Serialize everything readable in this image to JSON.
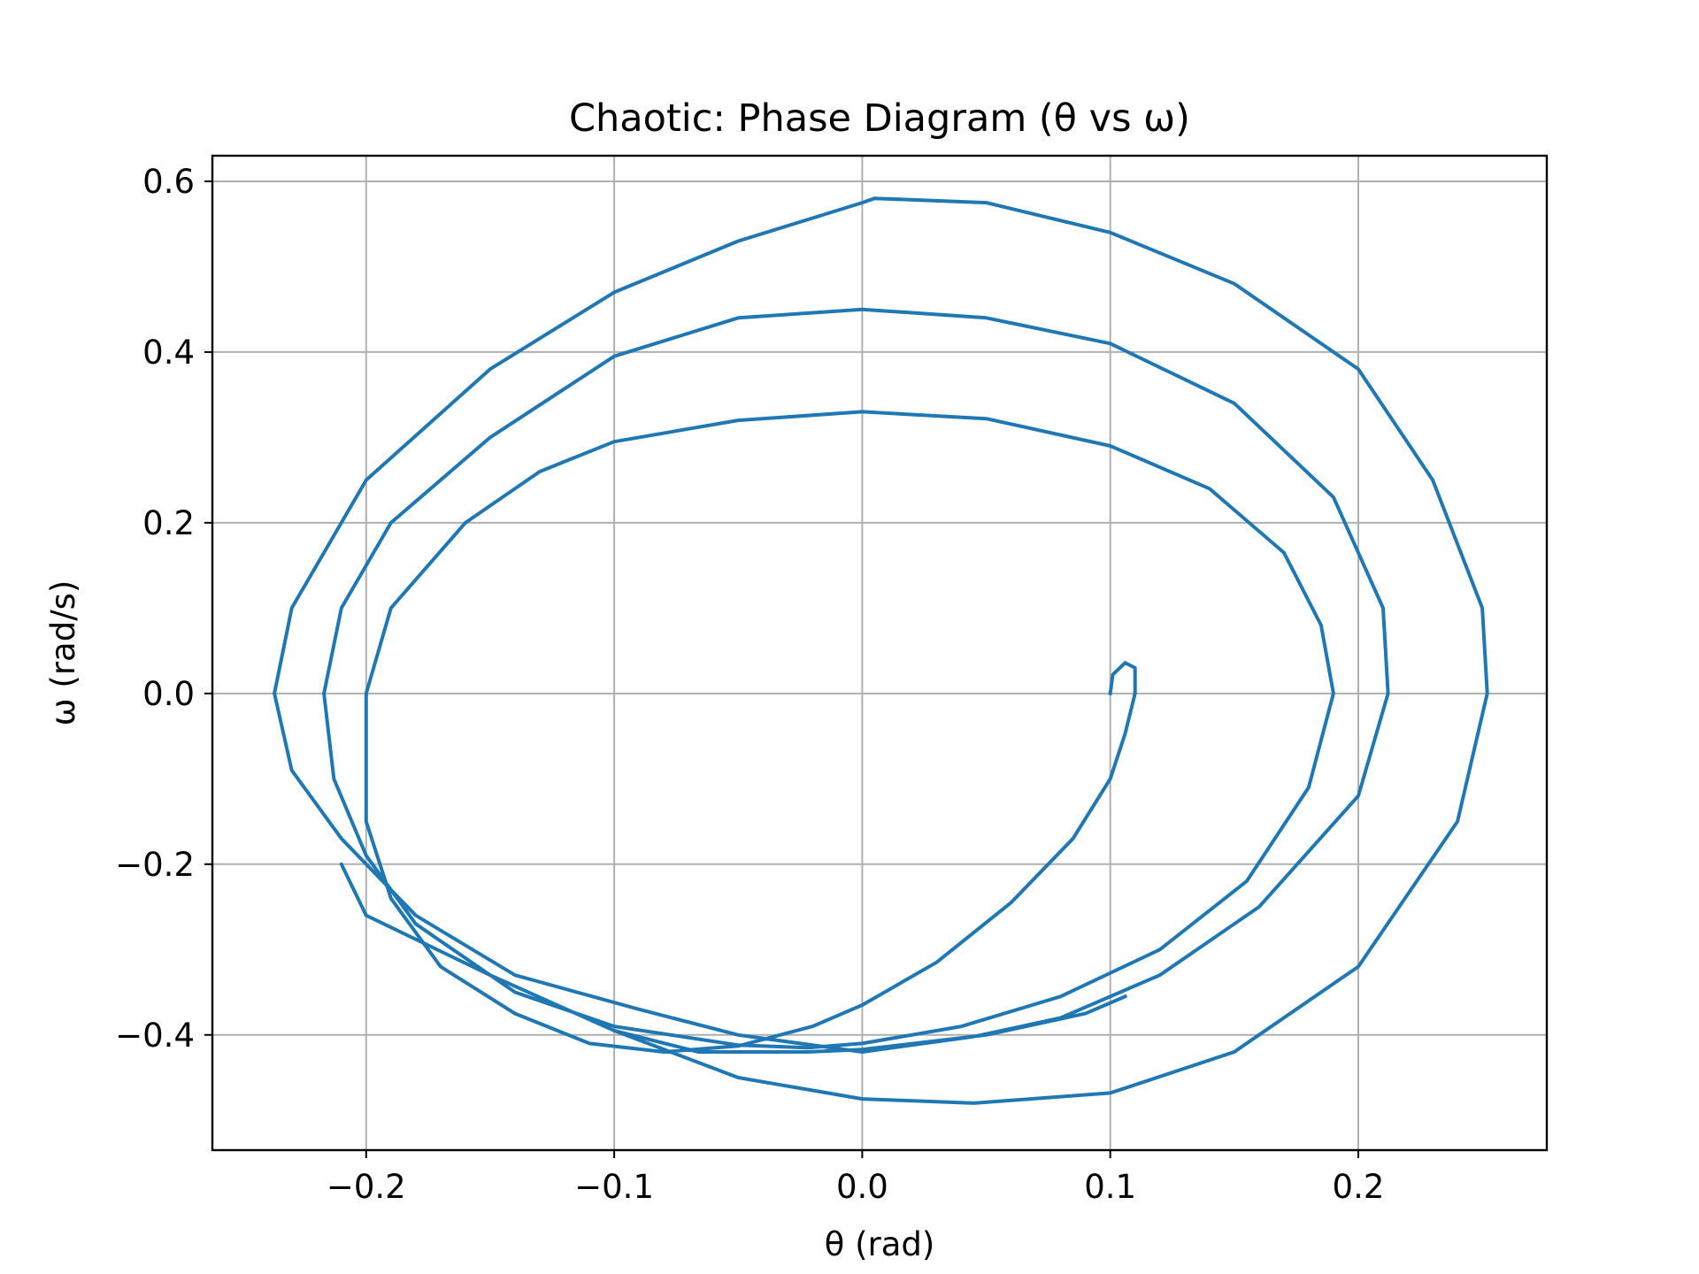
{
  "chart_data": {
    "type": "line",
    "title": "Chaotic: Phase Diagram (θ vs ω)",
    "xlabel": "θ (rad)",
    "ylabel": "ω (rad/s)",
    "xlim": [
      -0.262,
      0.276
    ],
    "ylim": [
      -0.535,
      0.63
    ],
    "xticks": [
      -0.2,
      -0.1,
      0.0,
      0.1,
      0.2
    ],
    "yticks": [
      -0.4,
      -0.2,
      0.0,
      0.2,
      0.4,
      0.6
    ],
    "xtick_labels": [
      "−0.2",
      "−0.1",
      "0.0",
      "0.1",
      "0.2"
    ],
    "ytick_labels": [
      "−0.4",
      "−0.2",
      "0.0",
      "0.2",
      "0.4",
      "0.6"
    ],
    "grid": true,
    "legend": "none",
    "series": [
      {
        "color": "#1f77b4",
        "points": [
          [
            0.1,
            0.0
          ],
          [
            0.101,
            0.022
          ],
          [
            0.106,
            0.036
          ],
          [
            0.11,
            0.03
          ],
          [
            0.11,
            0.0
          ],
          [
            0.106,
            -0.047
          ],
          [
            0.1,
            -0.1
          ],
          [
            0.085,
            -0.17
          ],
          [
            0.06,
            -0.245
          ],
          [
            0.03,
            -0.315
          ],
          [
            0.0,
            -0.365
          ],
          [
            -0.02,
            -0.39
          ],
          [
            -0.05,
            -0.413
          ],
          [
            -0.08,
            -0.42
          ],
          [
            -0.11,
            -0.41
          ],
          [
            -0.14,
            -0.375
          ],
          [
            -0.17,
            -0.32
          ],
          [
            -0.19,
            -0.24
          ],
          [
            -0.2,
            -0.15
          ],
          [
            -0.2,
            0.0
          ],
          [
            -0.19,
            0.1
          ],
          [
            -0.16,
            0.2
          ],
          [
            -0.13,
            0.26
          ],
          [
            -0.1,
            0.295
          ],
          [
            -0.05,
            0.32
          ],
          [
            0.0,
            0.33
          ],
          [
            0.05,
            0.322
          ],
          [
            0.1,
            0.29
          ],
          [
            0.14,
            0.24
          ],
          [
            0.17,
            0.165
          ],
          [
            0.185,
            0.08
          ],
          [
            0.19,
            0.0
          ],
          [
            0.18,
            -0.11
          ],
          [
            0.155,
            -0.22
          ],
          [
            0.12,
            -0.3
          ],
          [
            0.08,
            -0.355
          ],
          [
            0.04,
            -0.39
          ],
          [
            0.0,
            -0.41
          ],
          [
            -0.022,
            -0.415
          ],
          [
            -0.05,
            -0.412
          ],
          [
            -0.1,
            -0.39
          ],
          [
            -0.14,
            -0.35
          ],
          [
            -0.18,
            -0.27
          ],
          [
            -0.2,
            -0.19
          ],
          [
            -0.213,
            -0.1
          ],
          [
            -0.217,
            0.0
          ],
          [
            -0.21,
            0.1
          ],
          [
            -0.19,
            0.2
          ],
          [
            -0.15,
            0.3
          ],
          [
            -0.1,
            0.395
          ],
          [
            -0.05,
            0.44
          ],
          [
            0.0,
            0.45
          ],
          [
            0.05,
            0.44
          ],
          [
            0.1,
            0.41
          ],
          [
            0.15,
            0.34
          ],
          [
            0.19,
            0.23
          ],
          [
            0.21,
            0.1
          ],
          [
            0.212,
            0.0
          ],
          [
            0.2,
            -0.12
          ],
          [
            0.16,
            -0.25
          ],
          [
            0.12,
            -0.33
          ],
          [
            0.08,
            -0.38
          ],
          [
            0.045,
            -0.402
          ],
          [
            0.0,
            -0.42
          ],
          [
            -0.05,
            -0.4
          ],
          [
            -0.09,
            -0.37
          ],
          [
            -0.14,
            -0.33
          ],
          [
            -0.18,
            -0.26
          ],
          [
            -0.21,
            -0.17
          ],
          [
            -0.23,
            -0.09
          ],
          [
            -0.237,
            0.0
          ],
          [
            -0.23,
            0.1
          ],
          [
            -0.2,
            0.25
          ],
          [
            -0.15,
            0.38
          ],
          [
            -0.1,
            0.47
          ],
          [
            -0.05,
            0.53
          ],
          [
            0.0,
            0.575
          ],
          [
            0.005,
            0.58
          ],
          [
            0.05,
            0.575
          ],
          [
            0.1,
            0.54
          ],
          [
            0.15,
            0.48
          ],
          [
            0.2,
            0.38
          ],
          [
            0.23,
            0.25
          ],
          [
            0.25,
            0.1
          ],
          [
            0.252,
            0.0
          ],
          [
            0.24,
            -0.15
          ],
          [
            0.2,
            -0.32
          ],
          [
            0.15,
            -0.42
          ],
          [
            0.1,
            -0.468
          ],
          [
            0.045,
            -0.48
          ],
          [
            0.0,
            -0.475
          ],
          [
            -0.05,
            -0.45
          ],
          [
            -0.1,
            -0.395
          ],
          [
            -0.15,
            -0.33
          ],
          [
            -0.2,
            -0.26
          ],
          [
            -0.21,
            -0.2
          ],
          [
            -0.2,
            -0.26
          ],
          [
            -0.15,
            -0.33
          ],
          [
            -0.1,
            -0.395
          ],
          [
            -0.066,
            -0.42
          ],
          [
            -0.022,
            -0.42
          ],
          [
            0.0,
            -0.417
          ],
          [
            0.05,
            -0.4
          ],
          [
            0.09,
            -0.375
          ],
          [
            0.106,
            -0.355
          ]
        ]
      }
    ]
  }
}
